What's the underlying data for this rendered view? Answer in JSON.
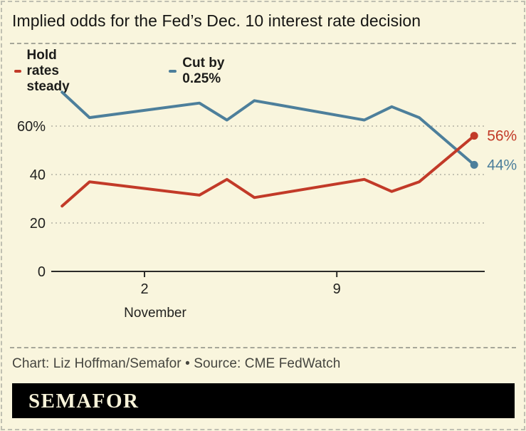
{
  "title": "Implied odds for the Fed’s Dec. 10 interest rate decision",
  "legend": {
    "items": [
      {
        "label": "Hold rates steady",
        "color": "#c23a28"
      },
      {
        "label": "Cut by 0.25%",
        "color": "#4d7f9b"
      }
    ]
  },
  "chart_data": {
    "type": "line",
    "title": "Implied odds for the Fed’s Dec. 10 interest rate decision",
    "x": [
      "Oct 30",
      "Oct 31",
      "Nov 4",
      "Nov 5",
      "Nov 6",
      "Nov 10",
      "Nov 11",
      "Nov 12",
      "Nov 14"
    ],
    "x_day_offsets_from_nov2": [
      -3,
      -2,
      2,
      3,
      4,
      8,
      9,
      10,
      12
    ],
    "series": [
      {
        "name": "Hold rates steady",
        "color": "#c23a28",
        "values": [
          27,
          37,
          31.5,
          38,
          30.5,
          38,
          33,
          37,
          56
        ],
        "end_label": "56%"
      },
      {
        "name": "Cut by 0.25%",
        "color": "#4d7f9b",
        "values": [
          74,
          63.5,
          69.5,
          62.5,
          70.5,
          62.5,
          68,
          63.5,
          44
        ],
        "end_label": "44%"
      }
    ],
    "y_axis": {
      "range": [
        0,
        78
      ],
      "gridlines": true,
      "ticks": [
        {
          "value": 0,
          "label": "0"
        },
        {
          "value": 20,
          "label": "20"
        },
        {
          "value": 40,
          "label": "40"
        },
        {
          "value": 60,
          "label": "60%"
        }
      ]
    },
    "x_axis": {
      "label": "November",
      "ticks": [
        {
          "day": 0,
          "label": "2"
        },
        {
          "day": 7,
          "label": "9"
        }
      ]
    },
    "legend_position": "top-left"
  },
  "credit": "Chart: Liz Hoffman/Semafor • Source: CME FedWatch",
  "logo": {
    "text": "SEMAFOR"
  },
  "colors": {
    "background": "#f9f5dd",
    "grid": "#b2b2a4",
    "axis": "#2b2b28",
    "tick_text": "#222220",
    "muted_text": "#45453f",
    "logo_bg": "#000000",
    "logo_fg": "#f7f3d9"
  }
}
